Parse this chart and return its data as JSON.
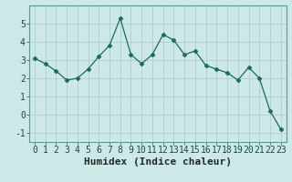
{
  "x": [
    0,
    1,
    2,
    3,
    4,
    5,
    6,
    7,
    8,
    9,
    10,
    11,
    12,
    13,
    14,
    15,
    16,
    17,
    18,
    19,
    20,
    21,
    22,
    23
  ],
  "y": [
    3.1,
    2.8,
    2.4,
    1.9,
    2.0,
    2.5,
    3.2,
    3.8,
    5.3,
    3.3,
    2.8,
    3.3,
    4.4,
    4.1,
    3.3,
    3.5,
    2.7,
    2.5,
    2.3,
    1.9,
    2.6,
    2.0,
    0.2,
    -0.8
  ],
  "line_color": "#1a6b5a",
  "marker": "D",
  "marker_size": 2.5,
  "bg_color": "#cce9e7",
  "grid_color": "#b0cece",
  "xlabel": "Humidex (Indice chaleur)",
  "xlim": [
    -0.5,
    23.5
  ],
  "ylim": [
    -1.5,
    6.0
  ],
  "yticks": [
    -1,
    0,
    1,
    2,
    3,
    4,
    5
  ],
  "xticks": [
    0,
    1,
    2,
    3,
    4,
    5,
    6,
    7,
    8,
    9,
    10,
    11,
    12,
    13,
    14,
    15,
    16,
    17,
    18,
    19,
    20,
    21,
    22,
    23
  ],
  "tick_fontsize": 7,
  "xlabel_fontsize": 8
}
